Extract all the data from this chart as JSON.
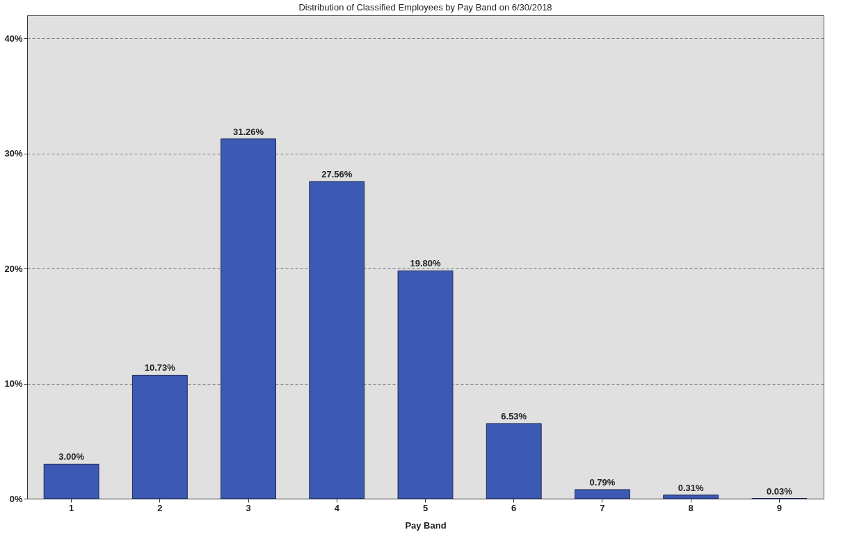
{
  "chart_data": {
    "type": "bar",
    "title": "Distribution of Classified Employees by Pay Band on 6/30/2018",
    "xlabel": "Pay Band",
    "categories": [
      "1",
      "2",
      "3",
      "4",
      "5",
      "6",
      "7",
      "8",
      "9"
    ],
    "values": [
      3.0,
      10.73,
      31.26,
      27.56,
      19.8,
      6.53,
      0.79,
      0.31,
      0.03
    ],
    "value_labels": [
      "3.00%",
      "10.73%",
      "31.26%",
      "27.56%",
      "19.80%",
      "6.53%",
      "0.79%",
      "0.31%",
      "0.03%"
    ],
    "color": "#3c59b4",
    "ylim": [
      0,
      42
    ],
    "yticks": [
      {
        "value": 0,
        "label": "0%"
      },
      {
        "value": 10,
        "label": "10%"
      },
      {
        "value": 20,
        "label": "20%"
      },
      {
        "value": 30,
        "label": "30%"
      },
      {
        "value": 40,
        "label": "40%"
      }
    ],
    "grid": "y"
  }
}
